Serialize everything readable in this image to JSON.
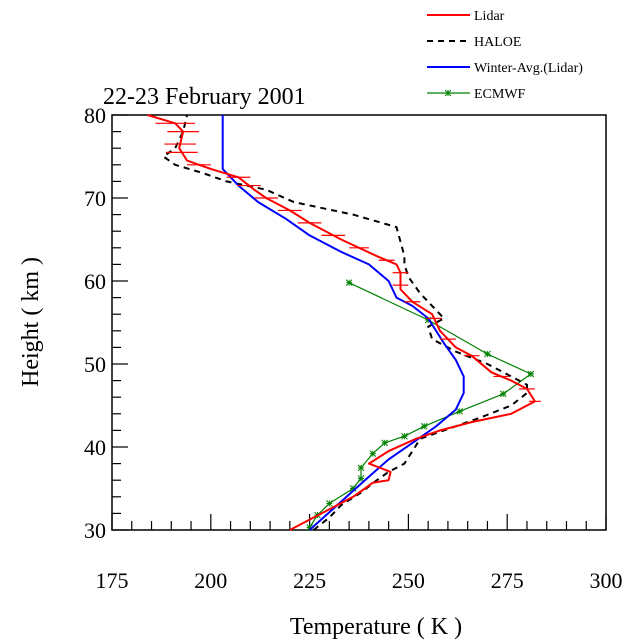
{
  "chart_data": {
    "type": "line",
    "title": "22-23 February 2001",
    "xlabel": "Temperature ( K )",
    "ylabel": "Height ( km )",
    "xlim": [
      175,
      300
    ],
    "ylim": [
      30,
      80
    ],
    "x_ticks": [
      "175",
      "200",
      "225",
      "250",
      "275",
      "300"
    ],
    "y_ticks": [
      "30",
      "40",
      "50",
      "60",
      "70",
      "80"
    ],
    "grid": false,
    "legend_position": "top-right",
    "series": [
      {
        "name": "Lidar",
        "color": "#ff0000",
        "style": "solid",
        "points": [
          [
            220,
            30
          ],
          [
            224,
            31
          ],
          [
            228,
            32
          ],
          [
            232,
            33
          ],
          [
            236,
            34
          ],
          [
            239,
            35
          ],
          [
            241,
            35.7
          ],
          [
            245,
            36
          ],
          [
            245.5,
            37
          ],
          [
            240,
            38
          ],
          [
            245,
            39.5
          ],
          [
            252,
            41
          ],
          [
            258,
            42
          ],
          [
            266,
            43
          ],
          [
            276,
            44
          ],
          [
            282,
            45.5
          ],
          [
            280,
            47
          ],
          [
            276,
            48
          ],
          [
            271,
            49
          ],
          [
            266,
            51
          ],
          [
            262,
            52
          ],
          [
            258,
            54
          ],
          [
            256,
            56
          ],
          [
            251,
            57.5
          ],
          [
            248,
            59
          ],
          [
            248,
            61
          ],
          [
            247,
            62
          ],
          [
            242,
            63
          ],
          [
            233,
            65
          ],
          [
            225,
            67
          ],
          [
            220,
            68.5
          ],
          [
            214,
            70
          ],
          [
            211,
            71
          ],
          [
            207,
            72.5
          ],
          [
            200,
            73.5
          ],
          [
            194,
            74.5
          ],
          [
            192,
            76
          ],
          [
            193,
            78
          ],
          [
            191,
            79
          ],
          [
            184,
            80
          ]
        ],
        "error_bars": [
          {
            "y": 79,
            "xerr": 5
          },
          {
            "y": 78,
            "xerr": 4
          },
          {
            "y": 76.5,
            "xerr": 4
          },
          {
            "y": 75.5,
            "xerr": 4
          },
          {
            "y": 74,
            "xerr": 3
          },
          {
            "y": 72.5,
            "xerr": 3
          },
          {
            "y": 71.5,
            "xerr": 3
          },
          {
            "y": 70,
            "xerr": 3
          },
          {
            "y": 68.5,
            "xerr": 3
          },
          {
            "y": 67,
            "xerr": 3
          },
          {
            "y": 65.5,
            "xerr": 3
          },
          {
            "y": 64,
            "xerr": 2.5
          },
          {
            "y": 62.5,
            "xerr": 2
          },
          {
            "y": 61,
            "xerr": 2
          },
          {
            "y": 59.5,
            "xerr": 2
          },
          {
            "y": 57.5,
            "xerr": 2
          },
          {
            "y": 55.5,
            "xerr": 2
          },
          {
            "y": 53,
            "xerr": 2
          },
          {
            "y": 51,
            "xerr": 2
          },
          {
            "y": 48.5,
            "xerr": 2
          },
          {
            "y": 47,
            "xerr": 2
          },
          {
            "y": 45.5,
            "xerr": 1.5
          }
        ]
      },
      {
        "name": "HALOE",
        "color": "#000000",
        "style": "dashed",
        "points": [
          [
            226,
            30
          ],
          [
            230,
            31.5
          ],
          [
            233,
            33
          ],
          [
            238,
            34.5
          ],
          [
            242,
            36
          ],
          [
            245,
            37
          ],
          [
            249,
            38
          ],
          [
            251,
            39.5
          ],
          [
            253,
            41
          ],
          [
            259,
            42
          ],
          [
            268,
            43.5
          ],
          [
            276,
            45
          ],
          [
            280,
            46.5
          ],
          [
            280,
            47.5
          ],
          [
            276,
            48.5
          ],
          [
            270,
            50
          ],
          [
            262,
            51.5
          ],
          [
            256,
            53
          ],
          [
            255,
            54.5
          ],
          [
            259,
            55.5
          ],
          [
            256,
            57
          ],
          [
            253,
            58.5
          ],
          [
            250,
            60.5
          ],
          [
            249,
            62
          ],
          [
            249,
            63
          ],
          [
            247,
            66.5
          ],
          [
            236,
            68
          ],
          [
            221,
            69.5
          ],
          [
            214,
            71
          ],
          [
            204,
            72
          ],
          [
            198,
            73
          ],
          [
            191,
            74
          ],
          [
            188,
            75
          ],
          [
            191,
            76
          ],
          [
            193,
            78
          ],
          [
            194,
            80
          ]
        ]
      },
      {
        "name": "Winter-Avg.(Lidar)",
        "color": "#0000ff",
        "style": "solid",
        "points": [
          [
            225,
            30
          ],
          [
            232,
            33
          ],
          [
            239,
            36
          ],
          [
            245,
            38.5
          ],
          [
            251,
            40.5
          ],
          [
            257,
            42.5
          ],
          [
            262,
            44.5
          ],
          [
            264,
            46.5
          ],
          [
            264,
            48.5
          ],
          [
            262,
            50.5
          ],
          [
            259,
            52.5
          ],
          [
            255,
            55.5
          ],
          [
            251,
            57
          ],
          [
            247,
            58
          ],
          [
            245,
            60
          ],
          [
            240,
            62
          ],
          [
            233,
            63.5
          ],
          [
            225,
            65.5
          ],
          [
            219,
            67.5
          ],
          [
            212,
            69.5
          ],
          [
            207,
            71.5
          ],
          [
            203,
            73.5
          ],
          [
            203,
            75.5
          ],
          [
            203,
            78
          ],
          [
            203,
            80
          ]
        ]
      },
      {
        "name": "ECMWF",
        "color": "#008000",
        "style": "solid-star",
        "points": [
          [
            225,
            30.3
          ],
          [
            227,
            31.8
          ],
          [
            230,
            33.2
          ],
          [
            236,
            35
          ],
          [
            238,
            36.2
          ],
          [
            238,
            37.5
          ],
          [
            241,
            39.2
          ],
          [
            244,
            40.5
          ],
          [
            249,
            41.3
          ],
          [
            254,
            42.5
          ],
          [
            263,
            44.3
          ],
          [
            274,
            46.4
          ],
          [
            281,
            48.8
          ],
          [
            270,
            51.2
          ],
          [
            255,
            55.3
          ],
          [
            235,
            59.8
          ]
        ]
      }
    ]
  }
}
